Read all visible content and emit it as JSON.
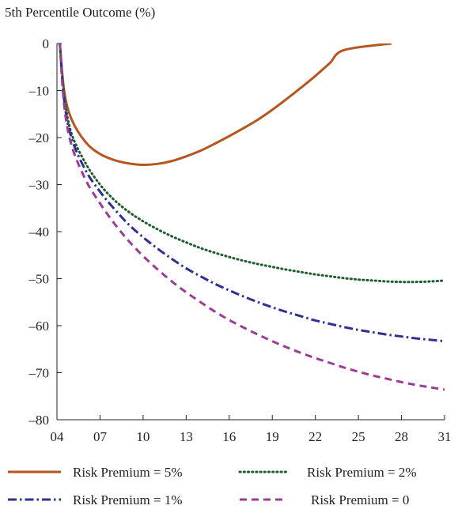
{
  "chart_data": {
    "type": "line",
    "title": "5th Percentile Outcome (%)",
    "xlabel": "",
    "ylabel": "",
    "x_ticks": [
      "04",
      "07",
      "10",
      "13",
      "16",
      "19",
      "22",
      "25",
      "28",
      "31"
    ],
    "y_ticks": [
      "0",
      "–10",
      "–20",
      "–30",
      "–40",
      "–50",
      "–60",
      "–70",
      "–80"
    ],
    "xlim": [
      2004,
      2031
    ],
    "ylim": [
      -80,
      0
    ],
    "grid": false,
    "legend_position": "bottom",
    "x": [
      2004.2,
      2004.5,
      2005,
      2006,
      2007,
      2008,
      2009,
      2010,
      2011,
      2012,
      2013,
      2014,
      2015,
      2016,
      2017,
      2018,
      2019,
      2020,
      2021,
      2022,
      2023,
      2024,
      2025,
      2026,
      2027,
      2028,
      2029,
      2030,
      2031
    ],
    "series": [
      {
        "name": "Risk Premium = 5%",
        "color": "#b5561f",
        "dash": "solid",
        "values": [
          0,
          -10,
          -16,
          -21,
          -23.5,
          -24.8,
          -25.5,
          -25.8,
          -25.6,
          -25,
          -24,
          -22.8,
          -21.3,
          -19.7,
          -18,
          -16.2,
          -14.1,
          -11.8,
          -9.4,
          -6.9,
          -4.2,
          -1.4,
          null,
          null,
          null,
          null,
          null,
          null,
          null
        ],
        "x_end": 2027.3
      },
      {
        "name": "Risk Premium = 2%",
        "color": "#1e5e2e",
        "dash": "dotted",
        "values": [
          0,
          -11,
          -19,
          -25.5,
          -30,
          -33.3,
          -35.8,
          -37.8,
          -39.5,
          -41,
          -42.3,
          -43.5,
          -44.5,
          -45.4,
          -46.2,
          -46.9,
          -47.5,
          -48.1,
          -48.6,
          -49.1,
          -49.5,
          -49.9,
          -50.2,
          -50.4,
          -50.6,
          -50.7,
          -50.7,
          -50.6,
          -50.4
        ]
      },
      {
        "name": "Risk Premium = 1%",
        "color": "#2e3192",
        "dash": "dashdot",
        "values": [
          0,
          -12,
          -20,
          -27,
          -31.5,
          -35.2,
          -38.5,
          -41.2,
          -43.6,
          -45.8,
          -47.8,
          -49.5,
          -51.1,
          -52.5,
          -53.8,
          -55,
          -56.1,
          -57.1,
          -58,
          -58.9,
          -59.6,
          -60.3,
          -60.9,
          -61.4,
          -61.9,
          -62.3,
          -62.7,
          -63,
          -63.3
        ]
      },
      {
        "name": "Risk Premium = 0",
        "color": "#9b3d97",
        "dash": "dashed",
        "values": [
          0,
          -13,
          -21.5,
          -29,
          -34,
          -38.3,
          -42,
          -45.2,
          -48,
          -50.6,
          -52.9,
          -55,
          -57,
          -58.8,
          -60.4,
          -61.9,
          -63.3,
          -64.6,
          -65.8,
          -66.9,
          -67.9,
          -68.9,
          -69.8,
          -70.6,
          -71.3,
          -72,
          -72.6,
          -73.1,
          -73.6
        ]
      }
    ]
  }
}
